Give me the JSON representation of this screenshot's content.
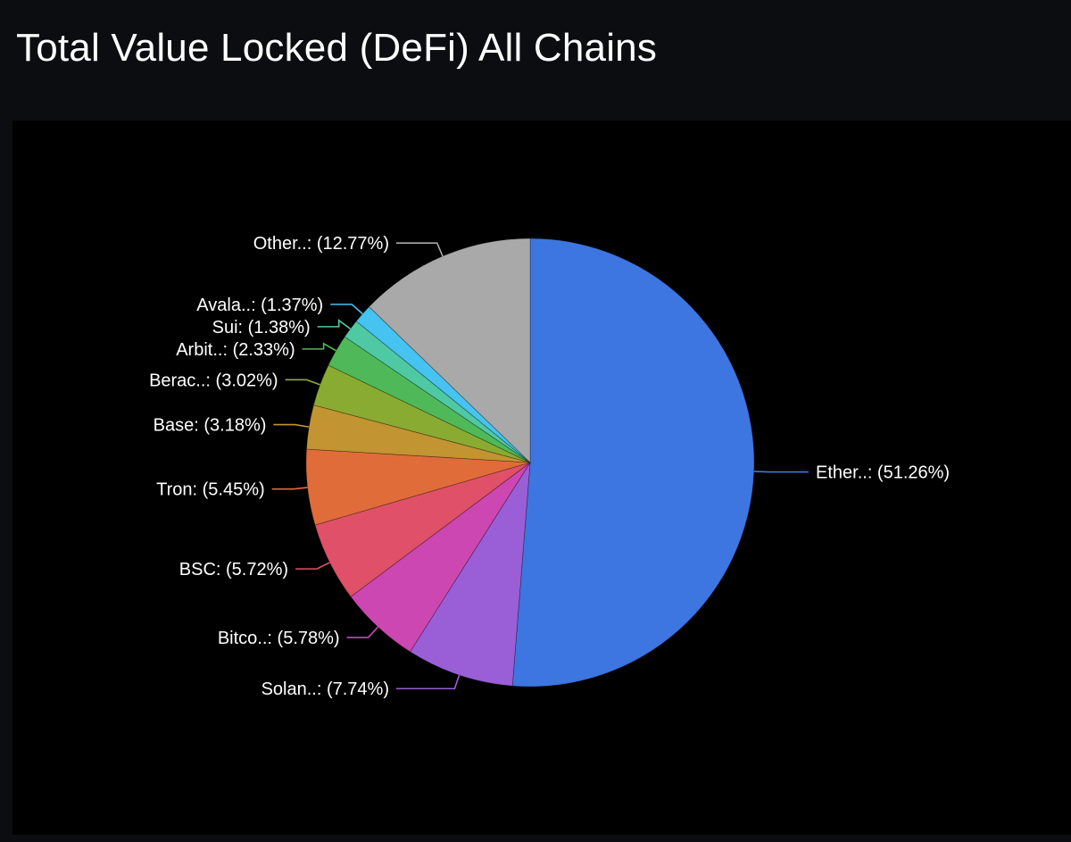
{
  "page": {
    "title": "Total Value Locked (DeFi) All Chains"
  },
  "chart_data": {
    "type": "pie",
    "title": "",
    "start_angle_deg": 0,
    "direction": "clockwise",
    "slices": [
      {
        "label": "Ether..: (51.26%)",
        "name": "Ether..",
        "value": 51.26,
        "color": "#3d76e0",
        "side": "right"
      },
      {
        "label": "Solan..: (7.74%)",
        "name": "Solan..",
        "value": 7.74,
        "color": "#9a5ed7",
        "side": "left"
      },
      {
        "label": "Bitco..: (5.78%)",
        "name": "Bitco..",
        "value": 5.78,
        "color": "#cc47b1",
        "side": "left"
      },
      {
        "label": "BSC: (5.72%)",
        "name": "BSC",
        "value": 5.72,
        "color": "#e05068",
        "side": "left"
      },
      {
        "label": "Tron: (5.45%)",
        "name": "Tron",
        "value": 5.45,
        "color": "#e06c3a",
        "side": "left"
      },
      {
        "label": "Base: (3.18%)",
        "name": "Base",
        "value": 3.18,
        "color": "#c29432",
        "side": "left"
      },
      {
        "label": "Berac..: (3.02%)",
        "name": "Berac..",
        "value": 3.02,
        "color": "#8aab32",
        "side": "left"
      },
      {
        "label": "Arbit..: (2.33%)",
        "name": "Arbit..",
        "value": 2.33,
        "color": "#4fb95a",
        "side": "left"
      },
      {
        "label": "Sui: (1.38%)",
        "name": "Sui",
        "value": 1.38,
        "color": "#4fc9a3",
        "side": "left"
      },
      {
        "label": "Avala..: (1.37%)",
        "name": "Avala..",
        "value": 1.37,
        "color": "#46c3f0",
        "side": "left"
      },
      {
        "label": "Other..: (12.77%)",
        "name": "Other..",
        "value": 12.77,
        "color": "#a9a9a9",
        "side": "left"
      }
    ]
  }
}
